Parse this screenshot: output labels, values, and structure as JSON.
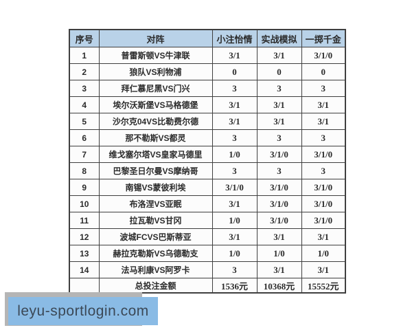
{
  "table": {
    "headers": [
      {
        "label": "序号"
      },
      {
        "label": "对阵"
      },
      {
        "label": "小注怡情"
      },
      {
        "label": "实战模拟"
      },
      {
        "label": "一掷千金"
      }
    ],
    "rows": [
      [
        "1",
        "普雷斯顿VS牛津联",
        "3/1",
        "3/1",
        "3/1/0"
      ],
      [
        "2",
        "狼队VS利物浦",
        "0",
        "0",
        "0"
      ],
      [
        "3",
        "拜仁慕尼黑VS门兴",
        "3",
        "3",
        "3"
      ],
      [
        "4",
        "埃尔沃斯堡VS马格德堡",
        "3/1",
        "3/1",
        "3/1"
      ],
      [
        "5",
        "沙尔克04VS比勒费尔德",
        "3/1",
        "3/1",
        "3/1"
      ],
      [
        "6",
        "那不勒斯VS都灵",
        "3",
        "3",
        "3"
      ],
      [
        "7",
        "维戈塞尔塔VS皇家马德里",
        "1/0",
        "3/1/0",
        "3/1/0"
      ],
      [
        "8",
        "巴黎圣日尔曼VS摩纳哥",
        "3",
        "3",
        "3"
      ],
      [
        "9",
        "南锡VS蒙彼利埃",
        "3/1/0",
        "3/1/0",
        "3/1/0"
      ],
      [
        "10",
        "布洛涅VS亚眠",
        "3/1",
        "3/1/0",
        "3/1/0"
      ],
      [
        "11",
        "拉瓦勒VS甘冈",
        "1/0",
        "3/1/0",
        "3/1/0"
      ],
      [
        "12",
        "波城FCVS巴斯蒂亚",
        "3/1",
        "3/1",
        "3/1"
      ],
      [
        "13",
        "赫拉克勒斯VS乌德勒支",
        "1/0",
        "1/0",
        "1/0"
      ],
      [
        "14",
        "法马利康VS阿罗卡",
        "3",
        "3/1",
        "3/1"
      ]
    ],
    "footer": [
      "",
      "总投注金额",
      "1536元",
      "10368元",
      "15552元"
    ]
  },
  "watermark": {
    "text": "leyu-sportlogin.com"
  },
  "colors": {
    "header_bg": "#b9d2e8",
    "border": "#3f3f3f",
    "watermark_bg": "#8abbe5",
    "watermark_shadow": "#b5b5b5",
    "watermark_text": "#3b4856"
  }
}
